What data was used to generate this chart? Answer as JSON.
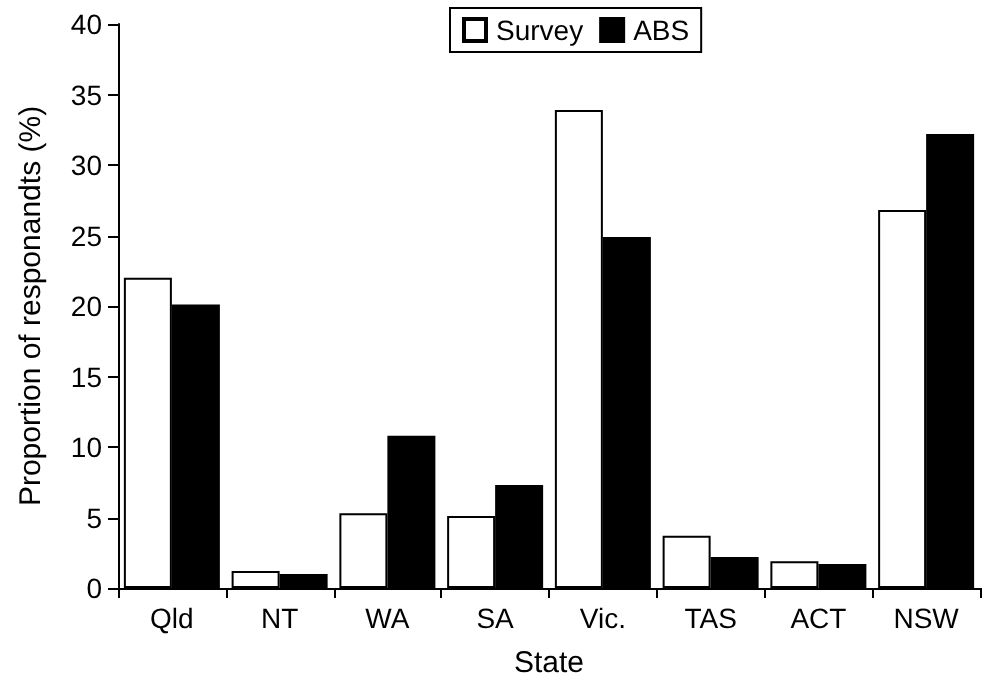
{
  "chart_data": {
    "type": "bar",
    "xlabel": "State",
    "ylabel": "Proportion of responandts (%)",
    "categories": [
      "Qld",
      "NT",
      "WA",
      "SA",
      "Vic.",
      "TAS",
      "ACT",
      "NSW"
    ],
    "series": [
      {
        "name": "Survey",
        "color": "#ffffff",
        "values": [
          22.0,
          1.2,
          5.3,
          5.1,
          33.9,
          3.7,
          1.9,
          26.8
        ]
      },
      {
        "name": "ABS",
        "color": "#000000",
        "values": [
          20.1,
          1.0,
          10.8,
          7.3,
          24.9,
          2.2,
          1.7,
          32.2
        ]
      }
    ],
    "ylim": [
      0,
      40
    ],
    "yticks": [
      0,
      5,
      10,
      15,
      20,
      25,
      30,
      35,
      40
    ],
    "grid": false,
    "legend": "top"
  }
}
